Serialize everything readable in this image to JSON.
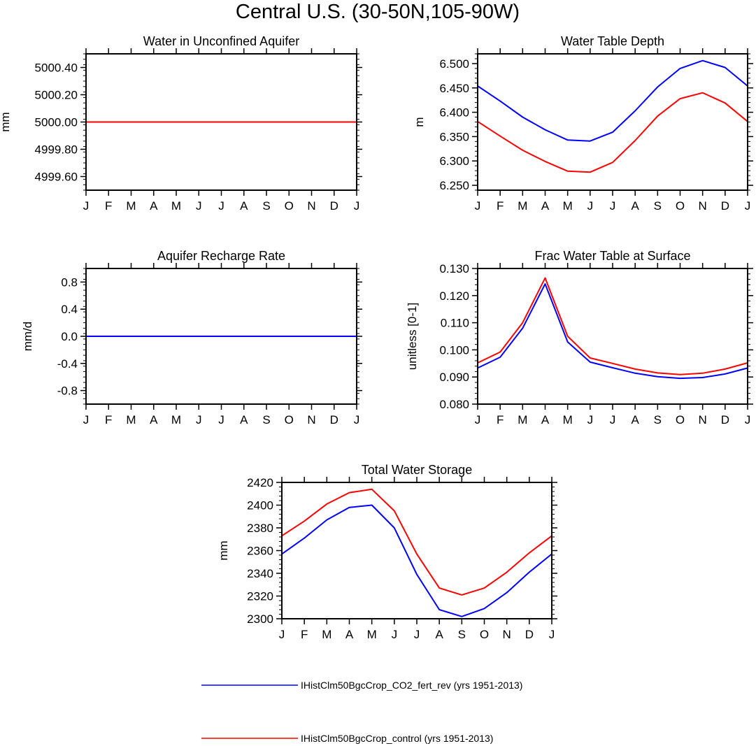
{
  "figure": {
    "title": "Central U.S. (30-50N,105-90W)"
  },
  "colors": {
    "series1": "#0000ff",
    "series2": "#ff0000",
    "axis": "#000000"
  },
  "legend": {
    "items": [
      {
        "label": "IHistClm50BgcCrop_CO2_fert_rev (yrs 1951-2013)",
        "color": "#0000ff"
      },
      {
        "label": "IHistClm50BgcCrop_control (yrs 1951-2013)",
        "color": "#ff0000"
      }
    ]
  },
  "chart_data": [
    {
      "type": "line",
      "title": "Water in Unconfined Aquifer",
      "ylabel": "mm",
      "categories": [
        "J",
        "F",
        "M",
        "A",
        "M",
        "J",
        "J",
        "A",
        "S",
        "O",
        "N",
        "D",
        "J"
      ],
      "ylim": [
        4999.5,
        5000.5
      ],
      "yticks": [
        4999.6,
        4999.8,
        5000.0,
        5000.2,
        5000.4
      ],
      "ytick_labels": [
        "4999.60",
        "4999.80",
        "5000.00",
        "5000.20",
        "5000.40"
      ],
      "series": [
        {
          "values": [
            5000,
            5000,
            5000,
            5000,
            5000,
            5000,
            5000,
            5000,
            5000,
            5000,
            5000,
            5000,
            5000
          ],
          "color": "#0000ff"
        },
        {
          "values": [
            5000,
            5000,
            5000,
            5000,
            5000,
            5000,
            5000,
            5000,
            5000,
            5000,
            5000,
            5000,
            5000
          ],
          "color": "#ff0000"
        }
      ]
    },
    {
      "type": "line",
      "title": "Water Table Depth",
      "ylabel": "m",
      "categories": [
        "J",
        "F",
        "M",
        "A",
        "M",
        "J",
        "J",
        "A",
        "S",
        "O",
        "N",
        "D",
        "J"
      ],
      "ylim": [
        6.24,
        6.52
      ],
      "yticks": [
        6.25,
        6.3,
        6.35,
        6.4,
        6.45,
        6.5
      ],
      "ytick_labels": [
        "6.250",
        "6.300",
        "6.350",
        "6.400",
        "6.450",
        "6.500"
      ],
      "series": [
        {
          "values": [
            6.454,
            6.423,
            6.39,
            6.364,
            6.343,
            6.341,
            6.359,
            6.403,
            6.452,
            6.49,
            6.506,
            6.492,
            6.454
          ],
          "color": "#0000ff"
        },
        {
          "values": [
            6.381,
            6.351,
            6.322,
            6.299,
            6.279,
            6.277,
            6.297,
            6.342,
            6.392,
            6.428,
            6.44,
            6.419,
            6.381
          ],
          "color": "#ff0000"
        }
      ]
    },
    {
      "type": "line",
      "title": "Aquifer Recharge Rate",
      "ylabel": "mm/d",
      "categories": [
        "J",
        "F",
        "M",
        "A",
        "M",
        "J",
        "J",
        "A",
        "S",
        "O",
        "N",
        "D",
        "J"
      ],
      "ylim": [
        -1.0,
        1.0
      ],
      "yticks": [
        -0.8,
        -0.4,
        0.0,
        0.4,
        0.8
      ],
      "ytick_labels": [
        "-0.8",
        "-0.4",
        "0.0",
        "0.4",
        "0.8"
      ],
      "series": [
        {
          "values": [
            0,
            0,
            0,
            0,
            0,
            0,
            0,
            0,
            0,
            0,
            0,
            0,
            0
          ],
          "color": "#ff0000"
        },
        {
          "values": [
            0,
            0,
            0,
            0,
            0,
            0,
            0,
            0,
            0,
            0,
            0,
            0,
            0
          ],
          "color": "#0000ff"
        }
      ]
    },
    {
      "type": "line",
      "title": "Frac Water Table at Surface",
      "ylabel": "unitless [0-1]",
      "categories": [
        "J",
        "F",
        "M",
        "A",
        "M",
        "J",
        "J",
        "A",
        "S",
        "O",
        "N",
        "D",
        "J"
      ],
      "ylim": [
        0.08,
        0.13
      ],
      "yticks": [
        0.08,
        0.09,
        0.1,
        0.11,
        0.12,
        0.13
      ],
      "ytick_labels": [
        "0.080",
        "0.090",
        "0.100",
        "0.110",
        "0.120",
        "0.130"
      ],
      "series": [
        {
          "values": [
            0.0933,
            0.0973,
            0.108,
            0.1243,
            0.1029,
            0.0955,
            0.0934,
            0.0914,
            0.0901,
            0.0895,
            0.0898,
            0.0911,
            0.0933
          ],
          "color": "#0000ff"
        },
        {
          "values": [
            0.0952,
            0.0992,
            0.11,
            0.1265,
            0.105,
            0.097,
            0.095,
            0.0929,
            0.0915,
            0.0909,
            0.0914,
            0.0929,
            0.0952
          ],
          "color": "#ff0000"
        }
      ]
    },
    {
      "type": "line",
      "title": "Total Water Storage",
      "ylabel": "mm",
      "categories": [
        "J",
        "F",
        "M",
        "A",
        "M",
        "J",
        "J",
        "A",
        "S",
        "O",
        "N",
        "D",
        "J"
      ],
      "ylim": [
        2300,
        2420
      ],
      "yticks": [
        2300,
        2320,
        2340,
        2360,
        2380,
        2400,
        2420
      ],
      "ytick_labels": [
        "2300",
        "2320",
        "2340",
        "2360",
        "2380",
        "2400",
        "2420"
      ],
      "series": [
        {
          "values": [
            2357,
            2371,
            2387,
            2398,
            2400,
            2380,
            2339,
            2308,
            2302,
            2309,
            2323,
            2341,
            2357
          ],
          "color": "#0000ff"
        },
        {
          "values": [
            2373,
            2386,
            2401,
            2411,
            2414,
            2395,
            2357,
            2327,
            2321,
            2327,
            2341,
            2358,
            2373
          ],
          "color": "#ff0000"
        }
      ]
    }
  ]
}
